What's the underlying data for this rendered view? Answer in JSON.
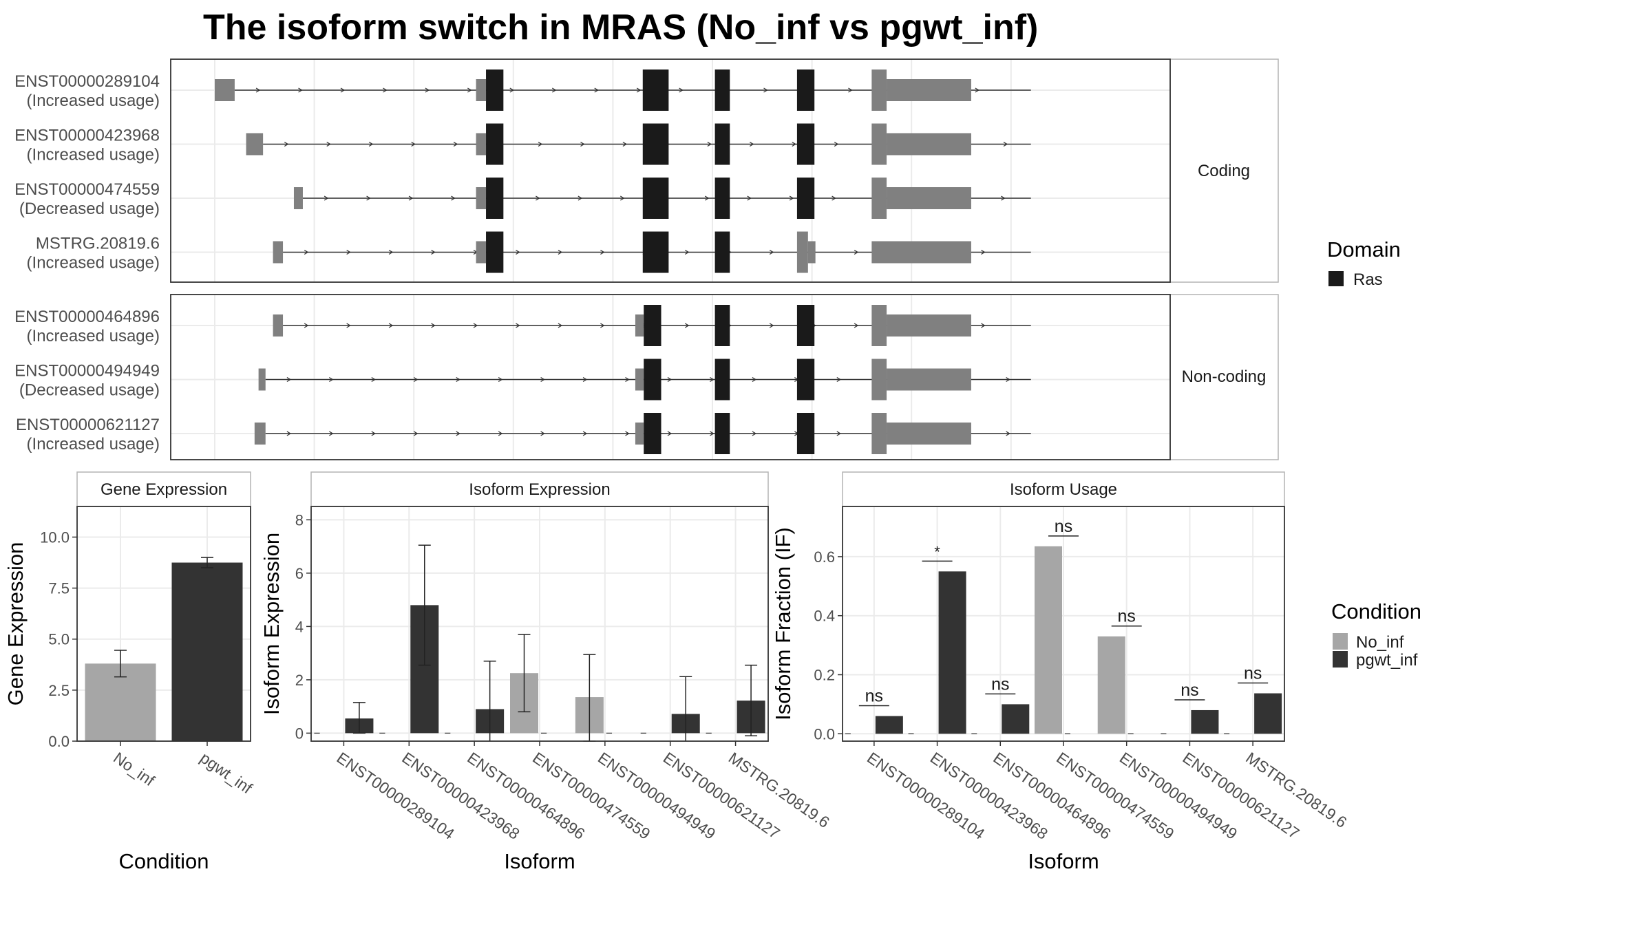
{
  "title": "The isoform switch in MRAS (No_inf vs pgwt_inf)",
  "colors": {
    "utr": "#808080",
    "domain": "#1a1a1a",
    "no_inf": "#a6a6a6",
    "pgwt_inf": "#333333",
    "frame": "#333333",
    "strip_border": "#b3b3b3",
    "grid": "#ebebeb"
  },
  "transcripts": {
    "panels": [
      {
        "label": "Coding",
        "rows": [
          {
            "id": "ENST00000289104",
            "usage": "(Increased usage)",
            "ras_exon4": "full",
            "first_exon": [
              0.0,
              0.4
            ]
          },
          {
            "id": "ENST00000423968",
            "usage": "(Increased usage)",
            "ras_exon4": "full",
            "first_exon": [
              0.63,
              0.97
            ]
          },
          {
            "id": "ENST00000474559",
            "usage": "(Decreased usage)",
            "ras_exon4": "full",
            "first_exon": [
              1.59,
              1.77
            ]
          },
          {
            "id": "MSTRG.20819.6",
            "usage": "(Increased usage)",
            "ras_exon4": "partial",
            "first_exon": [
              1.17,
              1.37
            ]
          }
        ]
      },
      {
        "label": "Non-coding",
        "rows": [
          {
            "id": "ENST00000464896",
            "usage": "(Increased usage)",
            "first_exon": [
              1.17,
              1.37
            ]
          },
          {
            "id": "ENST00000494949",
            "usage": "(Decreased usage)",
            "first_exon": [
              0.88,
              1.02
            ]
          },
          {
            "id": "ENST00000621127",
            "usage": "(Increased usage)",
            "first_exon": [
              0.8,
              1.02
            ]
          }
        ]
      }
    ],
    "legend": {
      "title": "Domain",
      "items": [
        {
          "label": "Ras",
          "color": "#1a1a1a"
        }
      ]
    }
  },
  "chart_data": [
    {
      "type": "bar",
      "title": "Gene Expression",
      "xlabel": "Condition",
      "ylabel": "Gene Expression",
      "ylim": [
        0,
        11.5
      ],
      "yticks": [
        "0.0",
        "2.5",
        "5.0",
        "7.5",
        "10.0"
      ],
      "categories": [
        "No_inf",
        "pgwt_inf"
      ],
      "values": [
        3.8,
        8.75
      ],
      "error_low": [
        3.15,
        8.5
      ],
      "error_high": [
        4.45,
        9.0
      ]
    },
    {
      "type": "bar",
      "title": "Isoform Expression",
      "xlabel": "Isoform",
      "ylabel": "Isoform Expression",
      "ylim": [
        -0.3,
        8.5
      ],
      "yticks": [
        "0",
        "2",
        "4",
        "6",
        "8"
      ],
      "categories": [
        "ENST00000289104",
        "ENST00000423968",
        "ENST00000464896",
        "ENST00000474559",
        "ENST00000494949",
        "ENST00000621127",
        "MSTRG.20819.6"
      ],
      "series": [
        {
          "name": "No_inf",
          "values": [
            0,
            0,
            0,
            2.25,
            1.35,
            0,
            0
          ],
          "error_low": [
            0,
            0,
            0,
            0.8,
            -0.3,
            0,
            0
          ],
          "error_high": [
            0,
            0,
            0,
            3.7,
            2.95,
            0,
            0
          ]
        },
        {
          "name": "pgwt_inf",
          "values": [
            0.55,
            4.8,
            0.9,
            0,
            0,
            0.72,
            1.22
          ],
          "error_low": [
            0,
            2.55,
            -0.9,
            0,
            0,
            -0.7,
            -0.1
          ],
          "error_high": [
            1.15,
            7.05,
            2.7,
            0,
            0,
            2.12,
            2.55
          ]
        }
      ]
    },
    {
      "type": "bar",
      "title": "Isoform Usage",
      "xlabel": "Isoform",
      "ylabel": "Isoform Fraction (IF)",
      "ylim": [
        -0.025,
        0.77
      ],
      "yticks": [
        "0.0",
        "0.2",
        "0.4",
        "0.6"
      ],
      "categories": [
        "ENST00000289104",
        "ENST00000423968",
        "ENST00000464896",
        "ENST00000474559",
        "ENST00000494949",
        "ENST00000621127",
        "MSTRG.20819.6"
      ],
      "series": [
        {
          "name": "No_inf",
          "values": [
            0,
            0,
            0,
            0.635,
            0.33,
            0,
            0
          ]
        },
        {
          "name": "pgwt_inf",
          "values": [
            0.06,
            0.55,
            0.1,
            0,
            0,
            0.08,
            0.137
          ]
        }
      ],
      "significance": [
        "ns",
        "*",
        "ns",
        "ns",
        "ns",
        "ns",
        "ns"
      ],
      "significance_level": [
        0.095,
        0.585,
        0.135,
        0.67,
        0.365,
        0.115,
        0.172
      ]
    }
  ],
  "condition_legend": {
    "title": "Condition",
    "items": [
      {
        "label": "No_inf",
        "color": "#a6a6a6"
      },
      {
        "label": "pgwt_inf",
        "color": "#333333"
      }
    ]
  }
}
